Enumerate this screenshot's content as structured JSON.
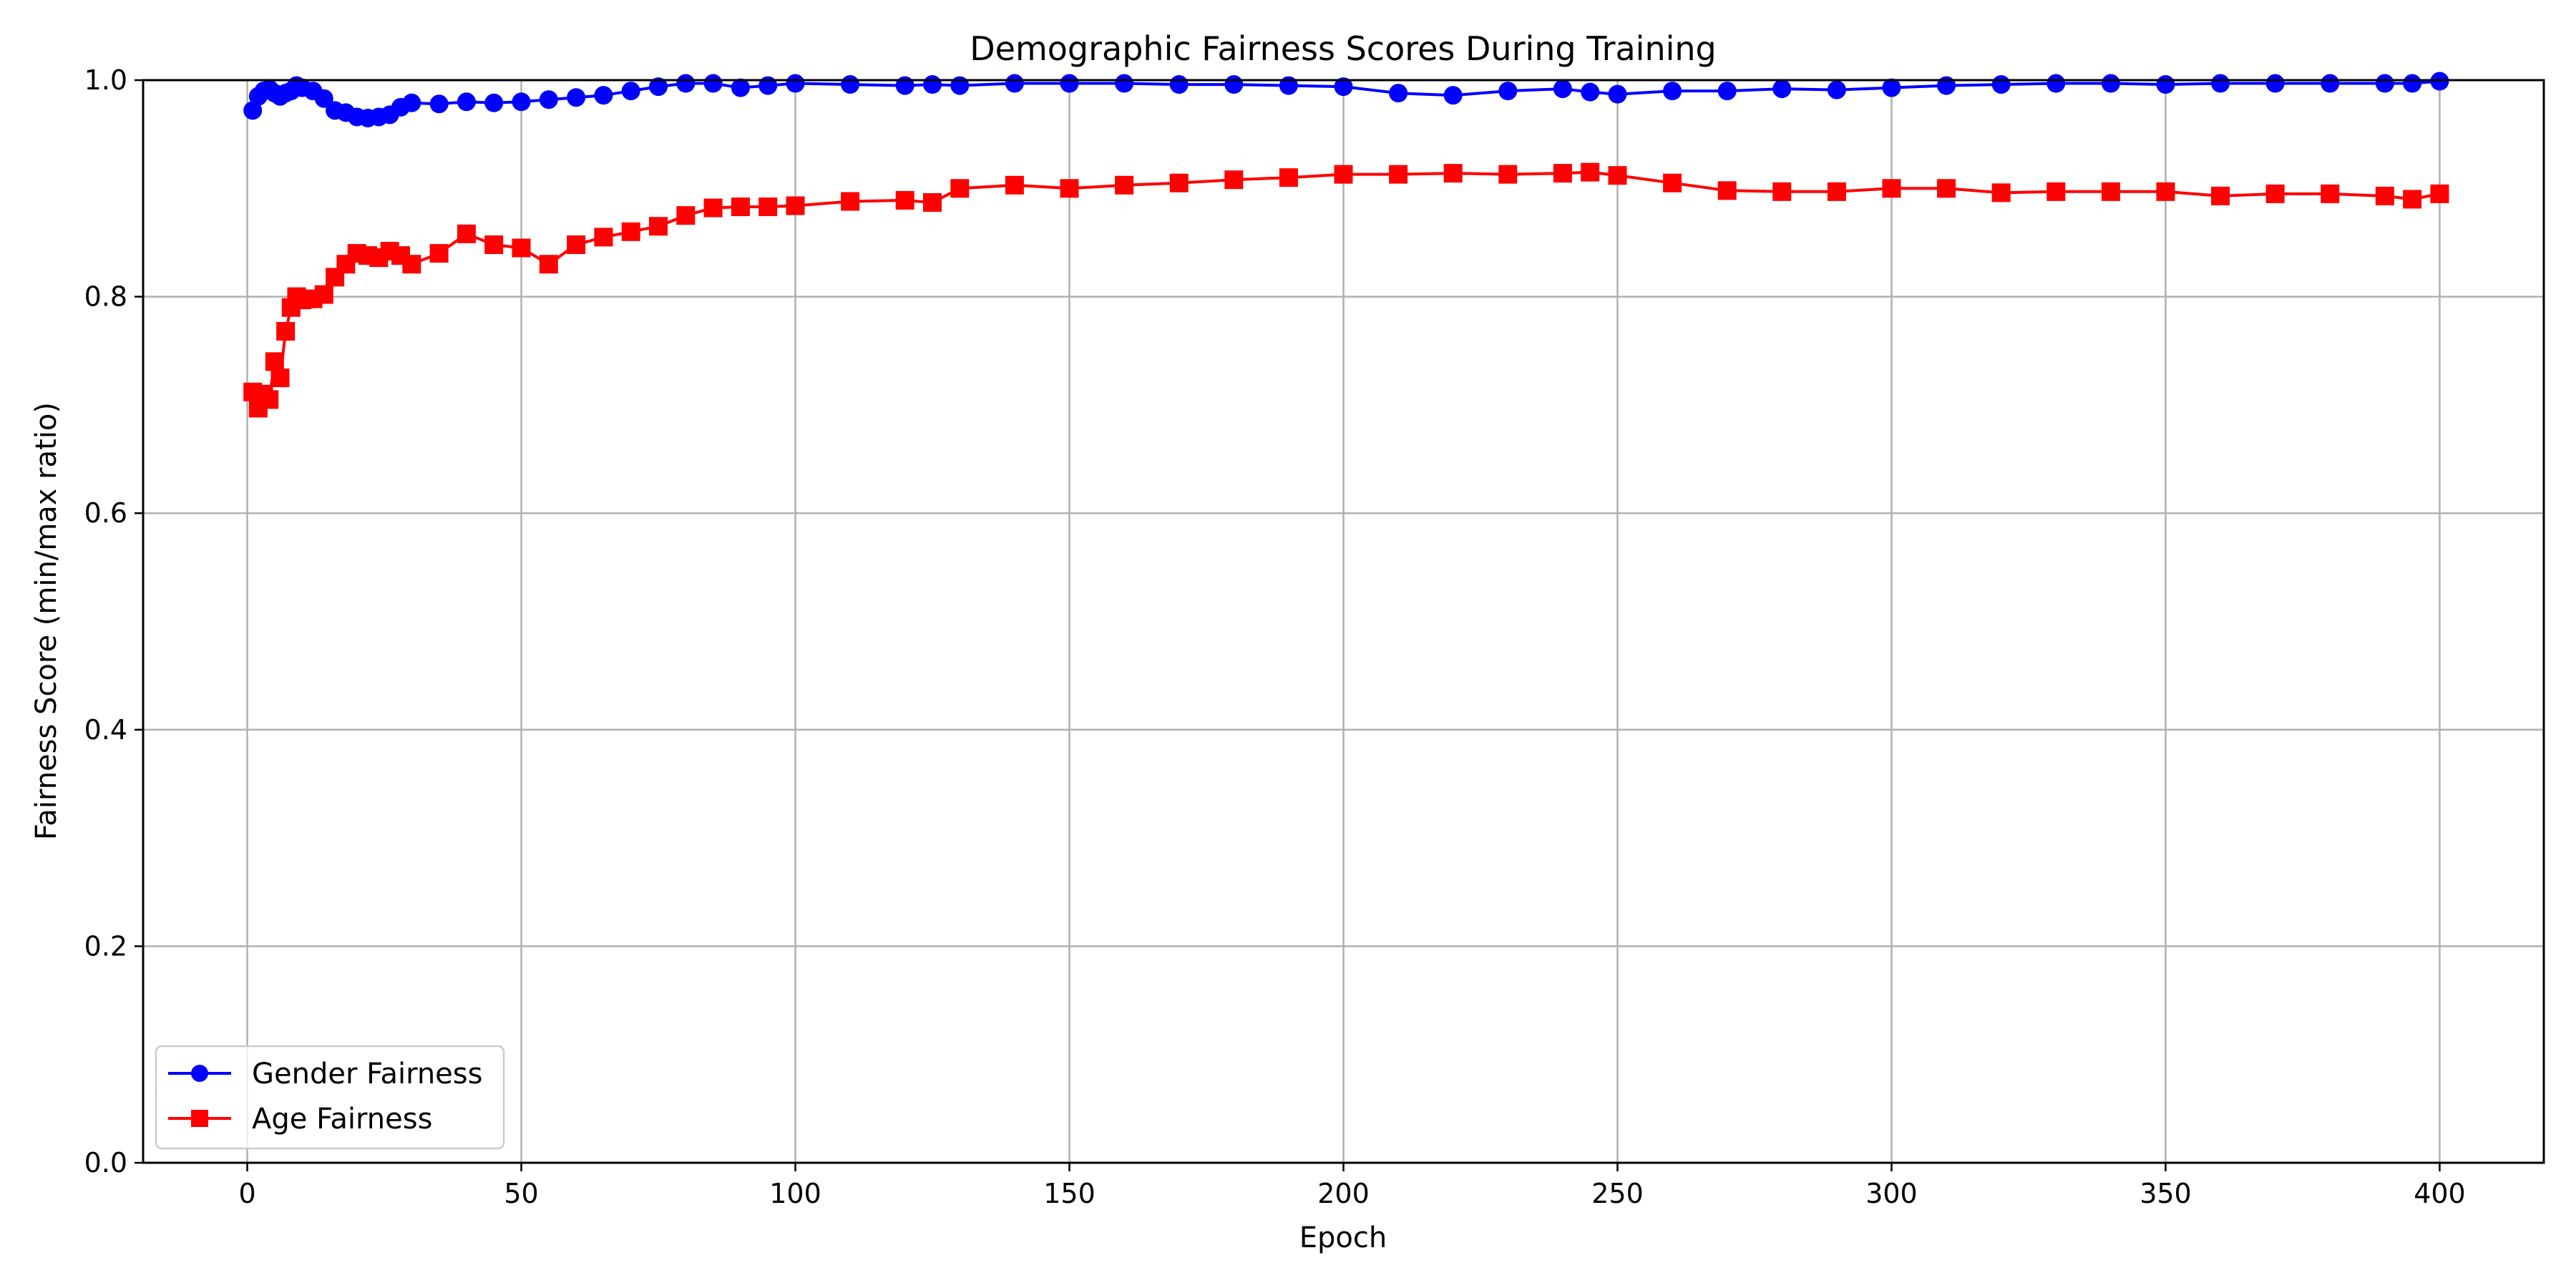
{
  "chart_data": {
    "type": "line",
    "title": "Demographic Fairness Scores During Training",
    "xlabel": "Epoch",
    "ylabel": "Fairness Score (min/max ratio)",
    "xlim": [
      -19,
      419
    ],
    "ylim": [
      0.0,
      1.0
    ],
    "xticks": [
      0,
      50,
      100,
      150,
      200,
      250,
      300,
      350,
      400
    ],
    "yticks": [
      0.0,
      0.2,
      0.4,
      0.6,
      0.8,
      1.0
    ],
    "xtick_labels": [
      "0",
      "50",
      "100",
      "150",
      "200",
      "250",
      "300",
      "350",
      "400"
    ],
    "ytick_labels": [
      "0.0",
      "0.2",
      "0.4",
      "0.6",
      "0.8",
      "1.0"
    ],
    "grid": true,
    "legend_position": "lower-left",
    "x": [
      1,
      2,
      3,
      4,
      5,
      6,
      7,
      8,
      9,
      10,
      12,
      14,
      16,
      18,
      20,
      22,
      24,
      26,
      28,
      30,
      35,
      40,
      45,
      50,
      55,
      60,
      65,
      70,
      75,
      80,
      85,
      90,
      95,
      100,
      110,
      120,
      125,
      130,
      140,
      150,
      160,
      170,
      180,
      190,
      200,
      210,
      220,
      230,
      240,
      245,
      250,
      260,
      270,
      280,
      290,
      300,
      310,
      320,
      330,
      340,
      350,
      360,
      370,
      380,
      390,
      395,
      400
    ],
    "series": [
      {
        "name": "Gender Fairness",
        "color": "#0000ff",
        "marker": "circle",
        "values": [
          0.972,
          0.985,
          0.99,
          0.992,
          0.988,
          0.985,
          0.988,
          0.99,
          0.995,
          0.993,
          0.99,
          0.983,
          0.972,
          0.97,
          0.966,
          0.965,
          0.966,
          0.968,
          0.975,
          0.979,
          0.978,
          0.98,
          0.979,
          0.98,
          0.982,
          0.984,
          0.986,
          0.99,
          0.994,
          0.997,
          0.997,
          0.993,
          0.995,
          0.997,
          0.996,
          0.995,
          0.996,
          0.995,
          0.997,
          0.997,
          0.997,
          0.996,
          0.996,
          0.995,
          0.994,
          0.988,
          0.986,
          0.99,
          0.992,
          0.989,
          0.987,
          0.99,
          0.99,
          0.992,
          0.991,
          0.993,
          0.995,
          0.996,
          0.997,
          0.997,
          0.996,
          0.997,
          0.997,
          0.997,
          0.997,
          0.997,
          0.999
        ]
      },
      {
        "name": "Age Fairness",
        "color": "#ff0000",
        "marker": "square",
        "values": [
          0.712,
          0.697,
          0.71,
          0.705,
          0.74,
          0.725,
          0.768,
          0.79,
          0.8,
          0.797,
          0.798,
          0.802,
          0.818,
          0.83,
          0.84,
          0.838,
          0.836,
          0.842,
          0.838,
          0.83,
          0.84,
          0.858,
          0.848,
          0.845,
          0.83,
          0.848,
          0.855,
          0.86,
          0.865,
          0.875,
          0.882,
          0.883,
          0.883,
          0.884,
          0.888,
          0.889,
          0.887,
          0.9,
          0.903,
          0.9,
          0.903,
          0.905,
          0.908,
          0.91,
          0.913,
          0.913,
          0.914,
          0.913,
          0.914,
          0.915,
          0.912,
          0.905,
          0.898,
          0.897,
          0.897,
          0.9,
          0.9,
          0.896,
          0.897,
          0.897,
          0.897,
          0.893,
          0.895,
          0.895,
          0.893,
          0.89,
          0.895
        ]
      }
    ]
  }
}
